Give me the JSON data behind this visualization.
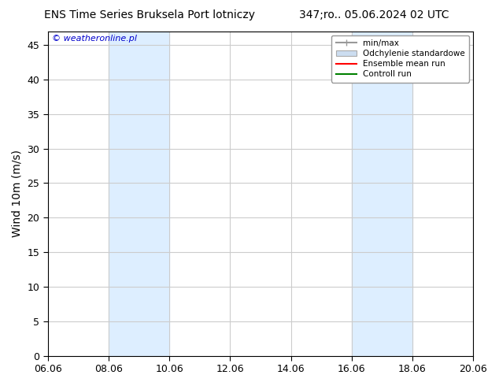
{
  "title_left": "ENS Time Series Bruksela Port lotniczy",
  "title_right": "347;ro.. 05.06.2024 02 UTC",
  "ylabel": "Wind 10m (m/s)",
  "watermark": "© weatheronline.pl",
  "ylim": [
    0,
    47
  ],
  "yticks": [
    0,
    5,
    10,
    15,
    20,
    25,
    30,
    35,
    40,
    45
  ],
  "xtick_labels": [
    "06.06",
    "08.06",
    "10.06",
    "12.06",
    "14.06",
    "16.06",
    "18.06",
    "20.06"
  ],
  "xtick_positions": [
    0,
    2,
    4,
    6,
    8,
    10,
    12,
    14
  ],
  "shaded_regions": [
    {
      "start": 2,
      "end": 4,
      "color": "#ddeeff"
    },
    {
      "start": 10,
      "end": 12,
      "color": "#ddeeff"
    }
  ],
  "legend_entries": [
    {
      "label": "min/max",
      "color": "#aaaaaa",
      "style": "minmax"
    },
    {
      "label": "Odchylenie standardowe",
      "color": "#ccddee",
      "style": "std"
    },
    {
      "label": "Ensemble mean run",
      "color": "red",
      "style": "line"
    },
    {
      "label": "Controll run",
      "color": "green",
      "style": "line"
    }
  ],
  "background_color": "#ffffff",
  "plot_bg_color": "#ffffff",
  "title_fontsize": 10,
  "tick_fontsize": 9,
  "ylabel_fontsize": 10,
  "watermark_color": "#0000cc",
  "grid_color": "#cccccc",
  "border_color": "#000000"
}
